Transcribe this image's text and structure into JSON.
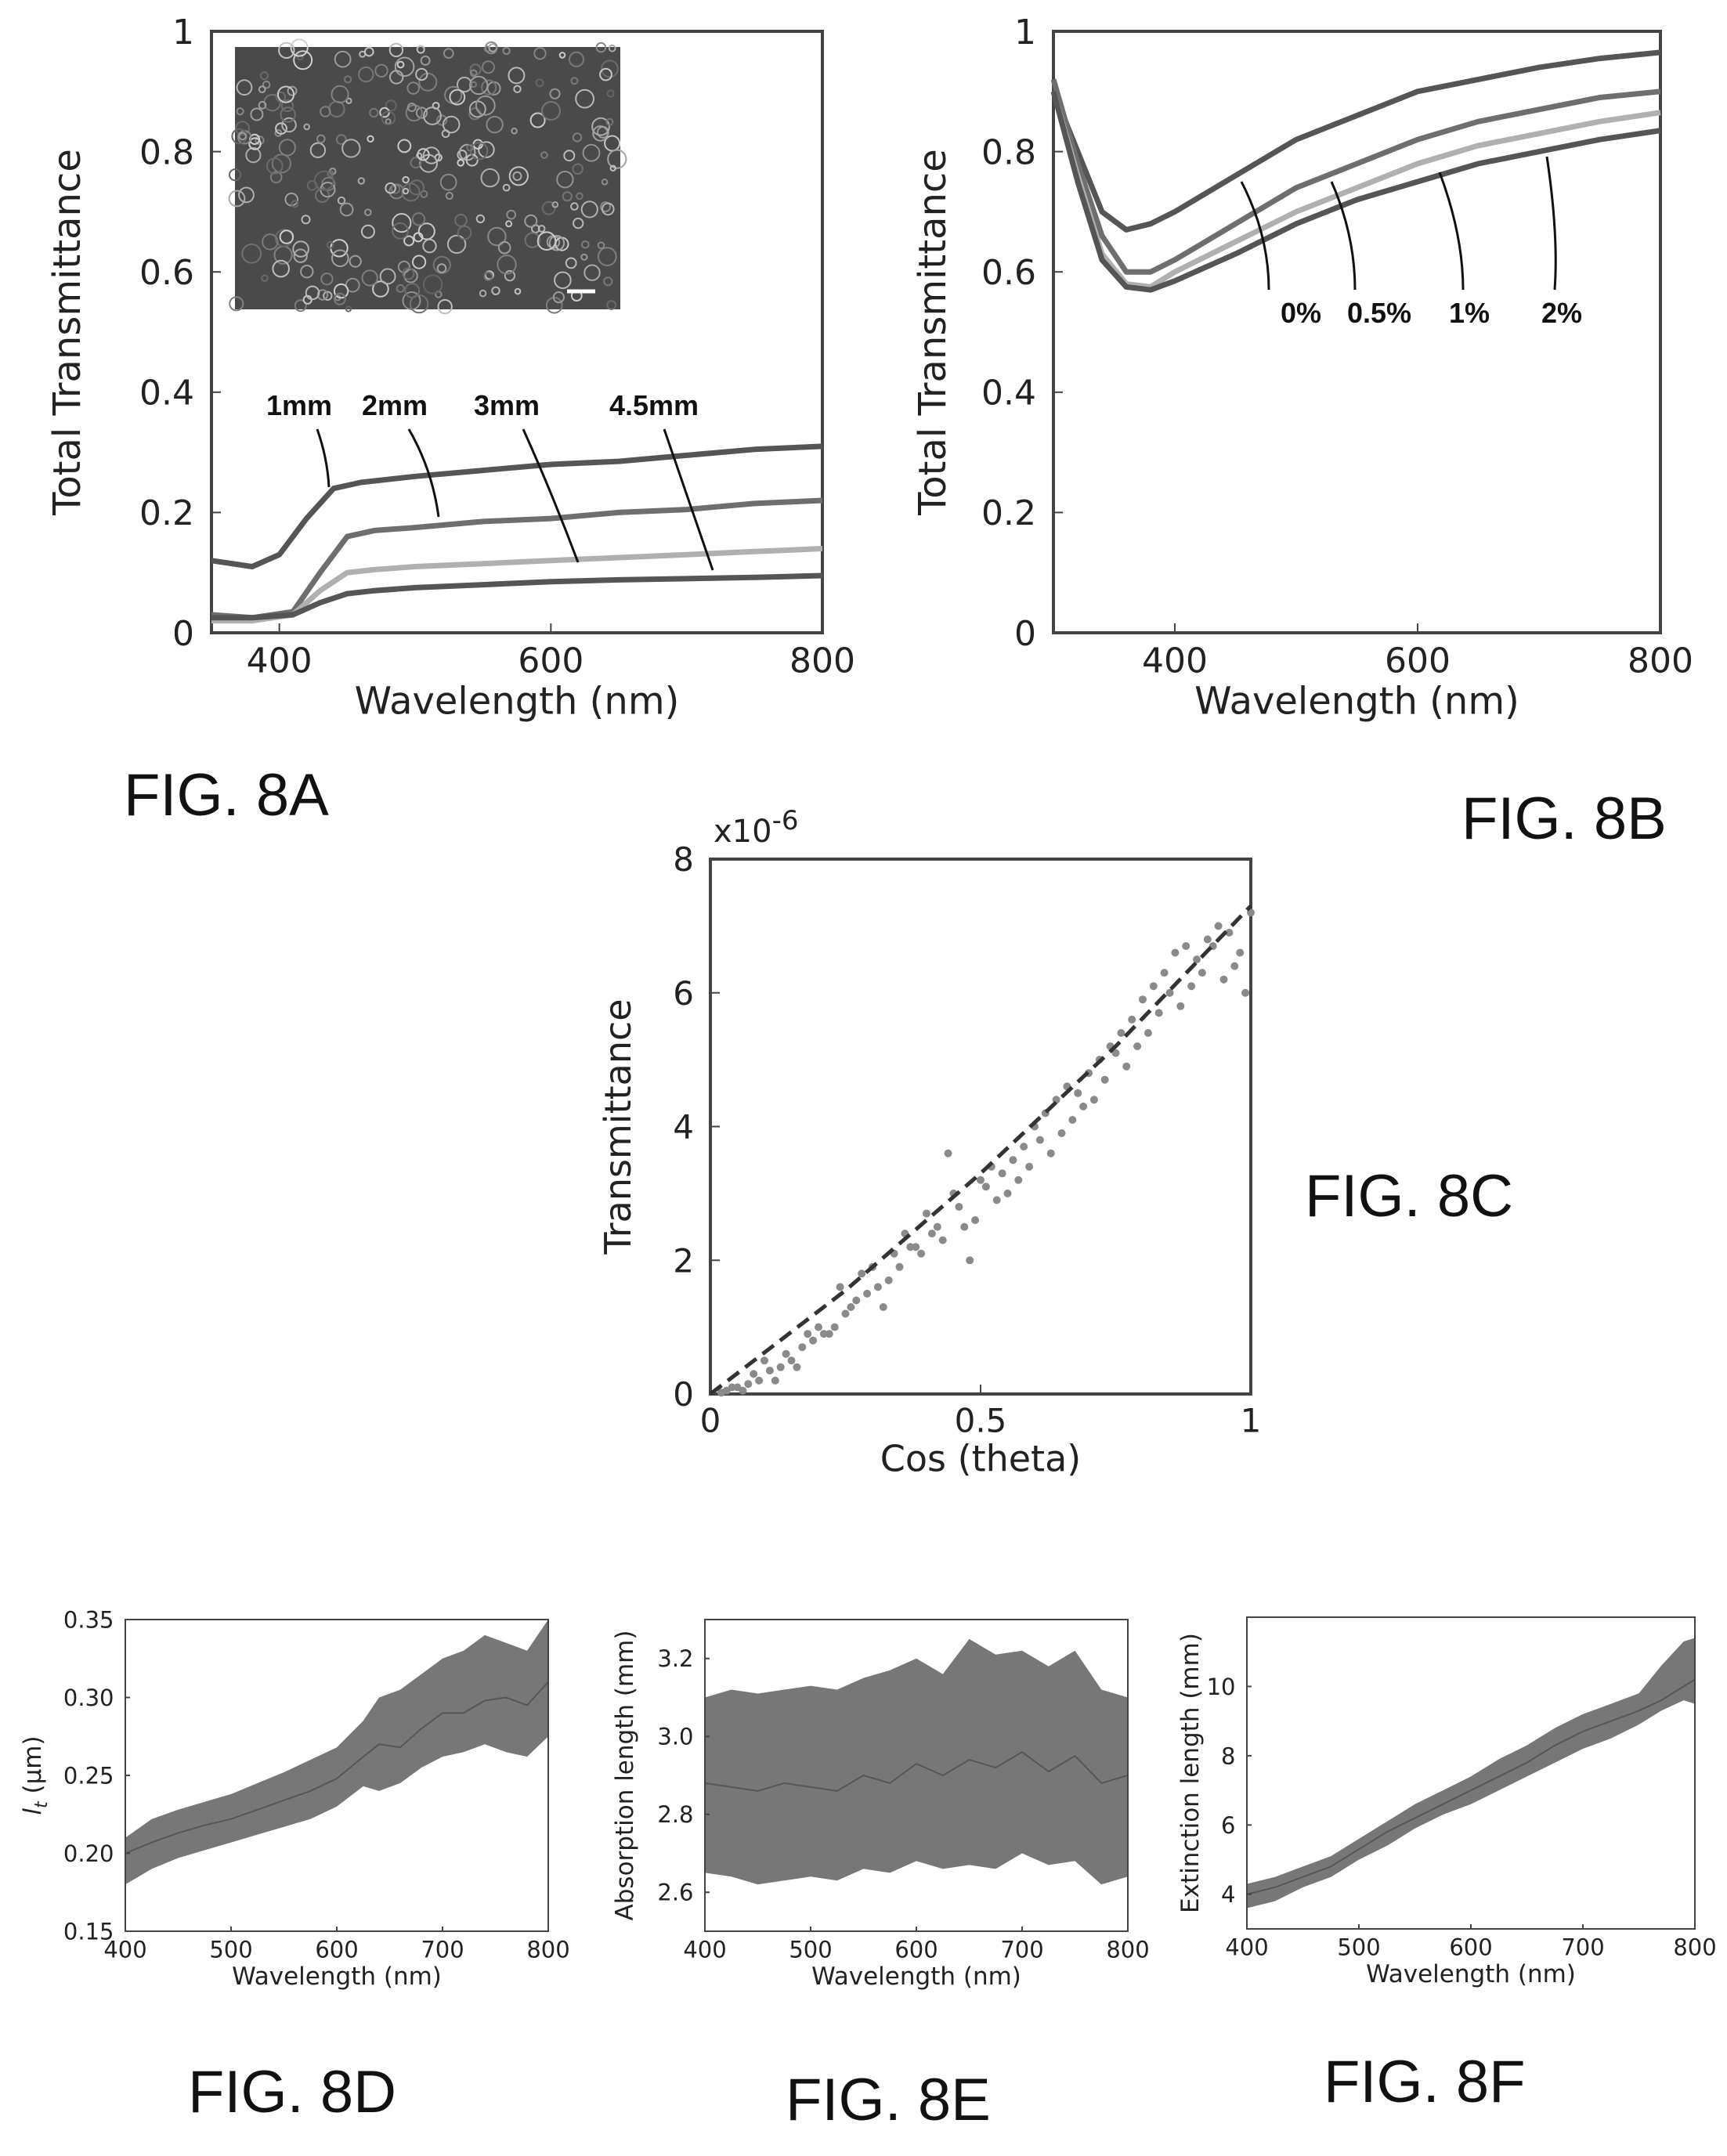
{
  "figure_labels": {
    "a": "FIG. 8A",
    "b": "FIG. 8B",
    "c": "FIG. 8C",
    "d": "FIG. 8D",
    "e": "FIG. 8E",
    "f": "FIG. 8F"
  },
  "inset": {
    "description_icon": "sem-micrograph-icon"
  },
  "colors": {
    "axis": "#444444",
    "dark": "#555555",
    "mid": "#6e6e6e",
    "light": "#b0b0b0",
    "band": "#777777",
    "point": "#8a8a8a"
  },
  "chart_data": [
    {
      "id": "8A",
      "type": "line",
      "xlabel": "Wavelength (nm)",
      "ylabel": "Total Transmittance",
      "xlim": [
        350,
        800
      ],
      "ylim": [
        0,
        1
      ],
      "xticks": [
        "400",
        "600",
        "800"
      ],
      "yticks": [
        "0",
        "0.2",
        "0.4",
        "0.6",
        "0.8",
        "1"
      ],
      "series": [
        {
          "name": "1mm",
          "x": [
            350,
            380,
            400,
            420,
            440,
            460,
            500,
            550,
            600,
            650,
            700,
            750,
            800
          ],
          "y": [
            0.12,
            0.11,
            0.13,
            0.19,
            0.24,
            0.25,
            0.26,
            0.27,
            0.28,
            0.285,
            0.295,
            0.305,
            0.31
          ]
        },
        {
          "name": "2mm",
          "x": [
            350,
            380,
            410,
            430,
            450,
            470,
            500,
            550,
            600,
            650,
            700,
            750,
            800
          ],
          "y": [
            0.03,
            0.025,
            0.035,
            0.1,
            0.16,
            0.17,
            0.175,
            0.185,
            0.19,
            0.2,
            0.205,
            0.215,
            0.22
          ]
        },
        {
          "name": "3mm",
          "x": [
            350,
            380,
            410,
            430,
            450,
            470,
            500,
            550,
            600,
            650,
            700,
            750,
            800
          ],
          "y": [
            0.02,
            0.02,
            0.03,
            0.07,
            0.1,
            0.105,
            0.11,
            0.115,
            0.12,
            0.125,
            0.13,
            0.135,
            0.14
          ]
        },
        {
          "name": "4.5mm",
          "x": [
            350,
            380,
            410,
            430,
            450,
            470,
            500,
            550,
            600,
            650,
            700,
            750,
            800
          ],
          "y": [
            0.025,
            0.025,
            0.03,
            0.05,
            0.065,
            0.07,
            0.075,
            0.08,
            0.085,
            0.088,
            0.09,
            0.092,
            0.095
          ]
        }
      ],
      "annotations": [
        "1mm",
        "2mm",
        "3mm",
        "4.5mm"
      ]
    },
    {
      "id": "8B",
      "type": "line",
      "xlabel": "Wavelength (nm)",
      "ylabel": "Total Transmittance",
      "xlim": [
        300,
        800
      ],
      "ylim": [
        0,
        1
      ],
      "xticks": [
        "400",
        "600",
        "800"
      ],
      "yticks": [
        "0",
        "0.2",
        "0.4",
        "0.6",
        "0.8",
        "1"
      ],
      "series": [
        {
          "name": "0%",
          "x": [
            300,
            320,
            340,
            360,
            380,
            400,
            450,
            500,
            550,
            600,
            650,
            700,
            750,
            800
          ],
          "y": [
            0.9,
            0.8,
            0.7,
            0.67,
            0.68,
            0.7,
            0.76,
            0.82,
            0.86,
            0.9,
            0.92,
            0.94,
            0.955,
            0.965
          ]
        },
        {
          "name": "0.5%",
          "x": [
            300,
            320,
            340,
            360,
            380,
            400,
            450,
            500,
            550,
            600,
            650,
            700,
            750,
            800
          ],
          "y": [
            0.92,
            0.78,
            0.66,
            0.6,
            0.6,
            0.62,
            0.68,
            0.74,
            0.78,
            0.82,
            0.85,
            0.87,
            0.89,
            0.9
          ]
        },
        {
          "name": "1%",
          "x": [
            300,
            320,
            340,
            360,
            380,
            400,
            450,
            500,
            550,
            600,
            650,
            700,
            750,
            800
          ],
          "y": [
            0.9,
            0.76,
            0.63,
            0.58,
            0.575,
            0.6,
            0.65,
            0.7,
            0.74,
            0.78,
            0.81,
            0.83,
            0.85,
            0.865
          ]
        },
        {
          "name": "2%",
          "x": [
            300,
            320,
            340,
            360,
            380,
            400,
            450,
            500,
            550,
            600,
            650,
            700,
            750,
            800
          ],
          "y": [
            0.9,
            0.75,
            0.62,
            0.575,
            0.57,
            0.585,
            0.63,
            0.68,
            0.72,
            0.75,
            0.78,
            0.8,
            0.82,
            0.835
          ]
        }
      ],
      "annotations": [
        "0%",
        "0.5%",
        "1%",
        "2%"
      ]
    },
    {
      "id": "8C",
      "type": "scatter",
      "xlabel": "Cos (theta)",
      "ylabel": "Transmittance",
      "multiplier": "x10",
      "multiplier_exp": "-6",
      "xlim": [
        0,
        1
      ],
      "ylim": [
        0,
        8
      ],
      "xticks": [
        "0",
        "0.5",
        "1"
      ],
      "yticks": [
        "0",
        "2",
        "4",
        "6",
        "8"
      ],
      "fit": {
        "x": [
          0,
          0.25,
          0.5,
          0.75,
          1
        ],
        "y": [
          0.0,
          1.55,
          3.3,
          5.2,
          7.3
        ]
      },
      "points": {
        "x": [
          0.04,
          0.06,
          0.08,
          0.1,
          0.12,
          0.14,
          0.16,
          0.18,
          0.2,
          0.22,
          0.24,
          0.26,
          0.28,
          0.3,
          0.32,
          0.34,
          0.36,
          0.38,
          0.4,
          0.42,
          0.44,
          0.45,
          0.46,
          0.48,
          0.5,
          0.52,
          0.54,
          0.56,
          0.58,
          0.6,
          0.62,
          0.64,
          0.66,
          0.68,
          0.7,
          0.72,
          0.74,
          0.76,
          0.78,
          0.8,
          0.82,
          0.84,
          0.86,
          0.88,
          0.9,
          0.92,
          0.94,
          0.96,
          0.98,
          1.0,
          0.99,
          0.97,
          0.95,
          0.93,
          0.91,
          0.89,
          0.87,
          0.85,
          0.83,
          0.81,
          0.79,
          0.77,
          0.75,
          0.73,
          0.71,
          0.69,
          0.67,
          0.65,
          0.63,
          0.61,
          0.59,
          0.57,
          0.55,
          0.53,
          0.51,
          0.49,
          0.47,
          0.43,
          0.41,
          0.39,
          0.37,
          0.35,
          0.33,
          0.31,
          0.29,
          0.27,
          0.25,
          0.23,
          0.21,
          0.19,
          0.17,
          0.15,
          0.13,
          0.11,
          0.09,
          0.07,
          0.05,
          0.03,
          0.02
        ],
        "y": [
          0.1,
          0.05,
          0.3,
          0.5,
          0.2,
          0.6,
          0.4,
          0.9,
          1.0,
          0.9,
          1.6,
          1.3,
          1.8,
          1.9,
          1.3,
          2.1,
          2.4,
          2.2,
          2.7,
          2.5,
          3.6,
          3.0,
          2.8,
          2.0,
          3.2,
          3.4,
          3.3,
          3.5,
          3.7,
          4.0,
          4.2,
          4.4,
          4.6,
          4.5,
          4.8,
          5.0,
          5.2,
          5.4,
          5.6,
          5.9,
          6.1,
          6.3,
          6.6,
          6.7,
          6.5,
          6.8,
          7.0,
          6.9,
          6.6,
          7.2,
          6.0,
          6.4,
          6.2,
          6.7,
          6.3,
          6.1,
          5.8,
          6.0,
          5.7,
          5.4,
          5.2,
          4.9,
          5.1,
          4.7,
          4.4,
          4.3,
          4.1,
          3.9,
          3.6,
          3.8,
          3.4,
          3.2,
          3.0,
          2.9,
          3.1,
          2.6,
          2.5,
          2.3,
          2.4,
          2.1,
          2.2,
          1.9,
          1.7,
          1.6,
          1.5,
          1.4,
          1.2,
          1.0,
          0.9,
          0.8,
          0.7,
          0.5,
          0.4,
          0.35,
          0.2,
          0.15,
          0.1,
          0.05,
          0.02
        ]
      }
    },
    {
      "id": "8D",
      "type": "area",
      "xlabel": "Wavelength (nm)",
      "ylabel": "l_t (μm)",
      "ylabel_main": "l",
      "ylabel_sub": "t",
      "ylabel_rest": " (μm)",
      "xlim": [
        400,
        800
      ],
      "ylim": [
        0.15,
        0.35
      ],
      "xticks": [
        "400",
        "500",
        "600",
        "700",
        "800"
      ],
      "yticks": [
        "0.15",
        "0.20",
        "0.25",
        "0.30",
        "0.35"
      ],
      "x": [
        400,
        425,
        450,
        475,
        500,
        525,
        550,
        575,
        600,
        625,
        640,
        660,
        680,
        700,
        720,
        740,
        760,
        780,
        800
      ],
      "mean": [
        0.2,
        0.207,
        0.213,
        0.218,
        0.222,
        0.228,
        0.234,
        0.24,
        0.248,
        0.262,
        0.27,
        0.268,
        0.28,
        0.29,
        0.29,
        0.298,
        0.3,
        0.295,
        0.31
      ],
      "upper": [
        0.21,
        0.222,
        0.228,
        0.233,
        0.238,
        0.245,
        0.252,
        0.26,
        0.268,
        0.285,
        0.3,
        0.305,
        0.315,
        0.325,
        0.33,
        0.34,
        0.335,
        0.33,
        0.35
      ],
      "lower": [
        0.18,
        0.19,
        0.197,
        0.202,
        0.207,
        0.212,
        0.217,
        0.222,
        0.23,
        0.243,
        0.24,
        0.245,
        0.255,
        0.262,
        0.265,
        0.27,
        0.265,
        0.262,
        0.275
      ]
    },
    {
      "id": "8E",
      "type": "area",
      "xlabel": "Wavelength (nm)",
      "ylabel": "Absorption length (mm)",
      "xlim": [
        400,
        800
      ],
      "ylim": [
        2.5,
        3.3
      ],
      "xticks": [
        "400",
        "500",
        "600",
        "700",
        "800"
      ],
      "yticks": [
        "2.6",
        "2.8",
        "3.0",
        "3.2"
      ],
      "x": [
        400,
        425,
        450,
        475,
        500,
        525,
        550,
        575,
        600,
        625,
        650,
        675,
        700,
        725,
        750,
        775,
        800
      ],
      "mean": [
        2.88,
        2.87,
        2.86,
        2.88,
        2.87,
        2.86,
        2.9,
        2.88,
        2.93,
        2.9,
        2.94,
        2.92,
        2.96,
        2.91,
        2.95,
        2.88,
        2.9
      ],
      "upper": [
        3.1,
        3.12,
        3.11,
        3.12,
        3.13,
        3.12,
        3.15,
        3.17,
        3.2,
        3.16,
        3.25,
        3.21,
        3.22,
        3.18,
        3.22,
        3.12,
        3.1
      ],
      "lower": [
        2.65,
        2.64,
        2.62,
        2.63,
        2.64,
        2.63,
        2.66,
        2.65,
        2.68,
        2.66,
        2.67,
        2.66,
        2.7,
        2.67,
        2.68,
        2.62,
        2.64
      ]
    },
    {
      "id": "8F",
      "type": "area",
      "xlabel": "Wavelength (nm)",
      "ylabel": "Extinction length (mm)",
      "xlim": [
        400,
        800
      ],
      "ylim": [
        3,
        12
      ],
      "xticks": [
        "400",
        "500",
        "600",
        "700",
        "800"
      ],
      "yticks": [
        "4",
        "6",
        "8",
        "10"
      ],
      "x": [
        400,
        425,
        450,
        475,
        500,
        525,
        550,
        575,
        600,
        625,
        650,
        675,
        700,
        725,
        750,
        770,
        790,
        800
      ],
      "mean": [
        4.0,
        4.2,
        4.5,
        4.8,
        5.3,
        5.8,
        6.2,
        6.6,
        7.0,
        7.4,
        7.8,
        8.3,
        8.7,
        9.0,
        9.3,
        9.6,
        10.0,
        10.2
      ],
      "upper": [
        4.3,
        4.5,
        4.8,
        5.1,
        5.6,
        6.1,
        6.6,
        7.0,
        7.4,
        7.9,
        8.3,
        8.8,
        9.2,
        9.5,
        9.8,
        10.6,
        11.3,
        11.4
      ],
      "lower": [
        3.6,
        3.8,
        4.2,
        4.5,
        5.0,
        5.4,
        5.9,
        6.3,
        6.6,
        7.0,
        7.4,
        7.8,
        8.2,
        8.5,
        8.9,
        9.3,
        9.6,
        9.5
      ]
    }
  ]
}
